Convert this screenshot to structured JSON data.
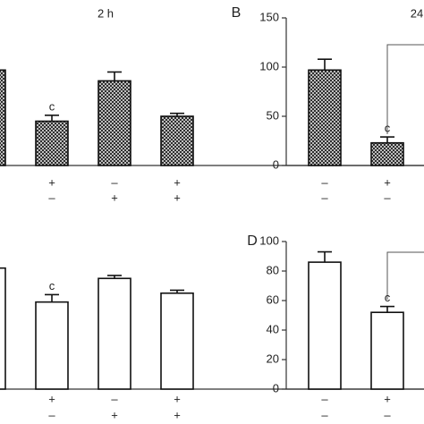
{
  "chart_data": [
    {
      "type": "bar",
      "title": "2 h",
      "pattern": "crosshatch",
      "row1": [
        null,
        "+",
        "–",
        "+"
      ],
      "row2": [
        null,
        "–",
        "+",
        "+"
      ],
      "values": [
        97,
        45,
        86,
        50
      ],
      "errors": [
        null,
        6,
        9,
        3
      ],
      "letters": [
        null,
        "c",
        null,
        null
      ],
      "ylim": [
        0,
        150
      ]
    },
    {
      "type": "bar",
      "panel": "B",
      "title": "24",
      "pattern": "crosshatch",
      "row1": [
        "–",
        "+"
      ],
      "row2": [
        "–",
        "–"
      ],
      "values": [
        97,
        23
      ],
      "errors": [
        11,
        6
      ],
      "letters": [
        null,
        "c"
      ],
      "ylim": [
        0,
        150
      ],
      "yticks": [
        0,
        50,
        100,
        150
      ]
    },
    {
      "type": "bar",
      "pattern": "none",
      "row1": [
        null,
        "+",
        "–",
        "+"
      ],
      "row2": [
        null,
        "–",
        "+",
        "+"
      ],
      "values": [
        82,
        59,
        75,
        65
      ],
      "errors": [
        null,
        5,
        2,
        2
      ],
      "letters": [
        null,
        "c",
        null,
        null
      ],
      "ylim": [
        0,
        100
      ]
    },
    {
      "type": "bar",
      "panel": "D",
      "pattern": "none",
      "row1": [
        "–",
        "+"
      ],
      "row2": [
        "–",
        "–"
      ],
      "values": [
        86,
        52
      ],
      "errors": [
        7,
        4
      ],
      "letters": [
        null,
        "c"
      ],
      "ylim": [
        0,
        100
      ],
      "yticks": [
        0,
        20,
        40,
        60,
        80,
        100
      ]
    }
  ]
}
